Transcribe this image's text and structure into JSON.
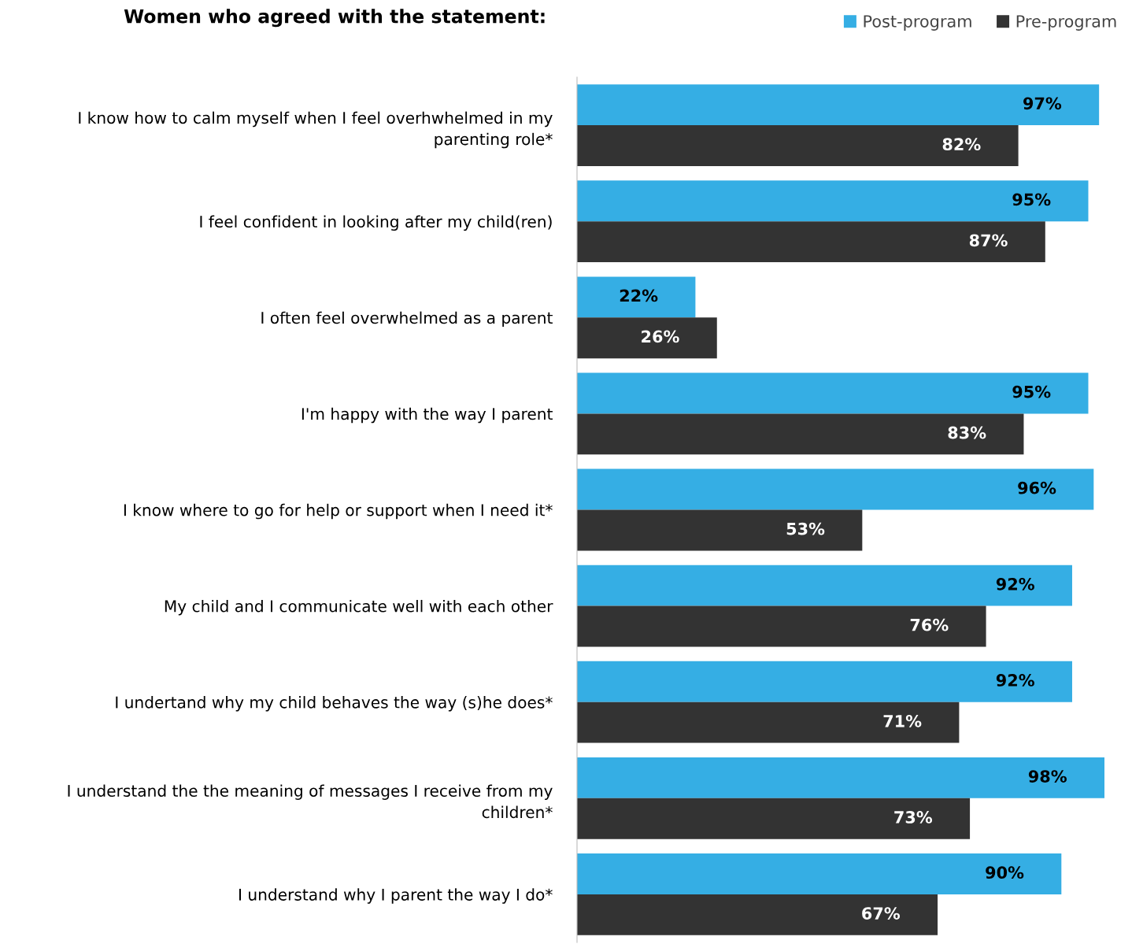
{
  "chart_data": {
    "type": "bar",
    "orientation": "horizontal",
    "title": "Women who agreed with the statement:",
    "categories": [
      "I know how to calm myself when I feel overhwhelmed in my\nparenting role*",
      "I feel confident in looking after my child(ren)",
      "I often feel overwhelmed as a parent",
      "I'm happy with the way I parent",
      "I know where to go for help or support when I need it*",
      "My child and I communicate well with each other",
      "I undertand why my child behaves the way (s)he does*",
      "I understand the the meaning of messages I receive from my\nchildren*",
      "I understand why I parent the way I do*"
    ],
    "series": [
      {
        "name": "Post-program",
        "color": "#35aee4",
        "values": [
          97,
          95,
          22,
          95,
          96,
          92,
          92,
          98,
          90
        ],
        "value_labels": [
          "97%",
          "95%",
          "22%",
          "95%",
          "96%",
          "92%",
          "92%",
          "98%",
          "90%"
        ]
      },
      {
        "name": "Pre-program",
        "color": "#333333",
        "values": [
          82,
          87,
          26,
          83,
          53,
          76,
          71,
          73,
          67
        ],
        "value_labels": [
          "82%",
          "87%",
          "26%",
          "83%",
          "53%",
          "76%",
          "71%",
          "73%",
          "67%"
        ]
      }
    ],
    "legend": "top right",
    "grid": false
  }
}
